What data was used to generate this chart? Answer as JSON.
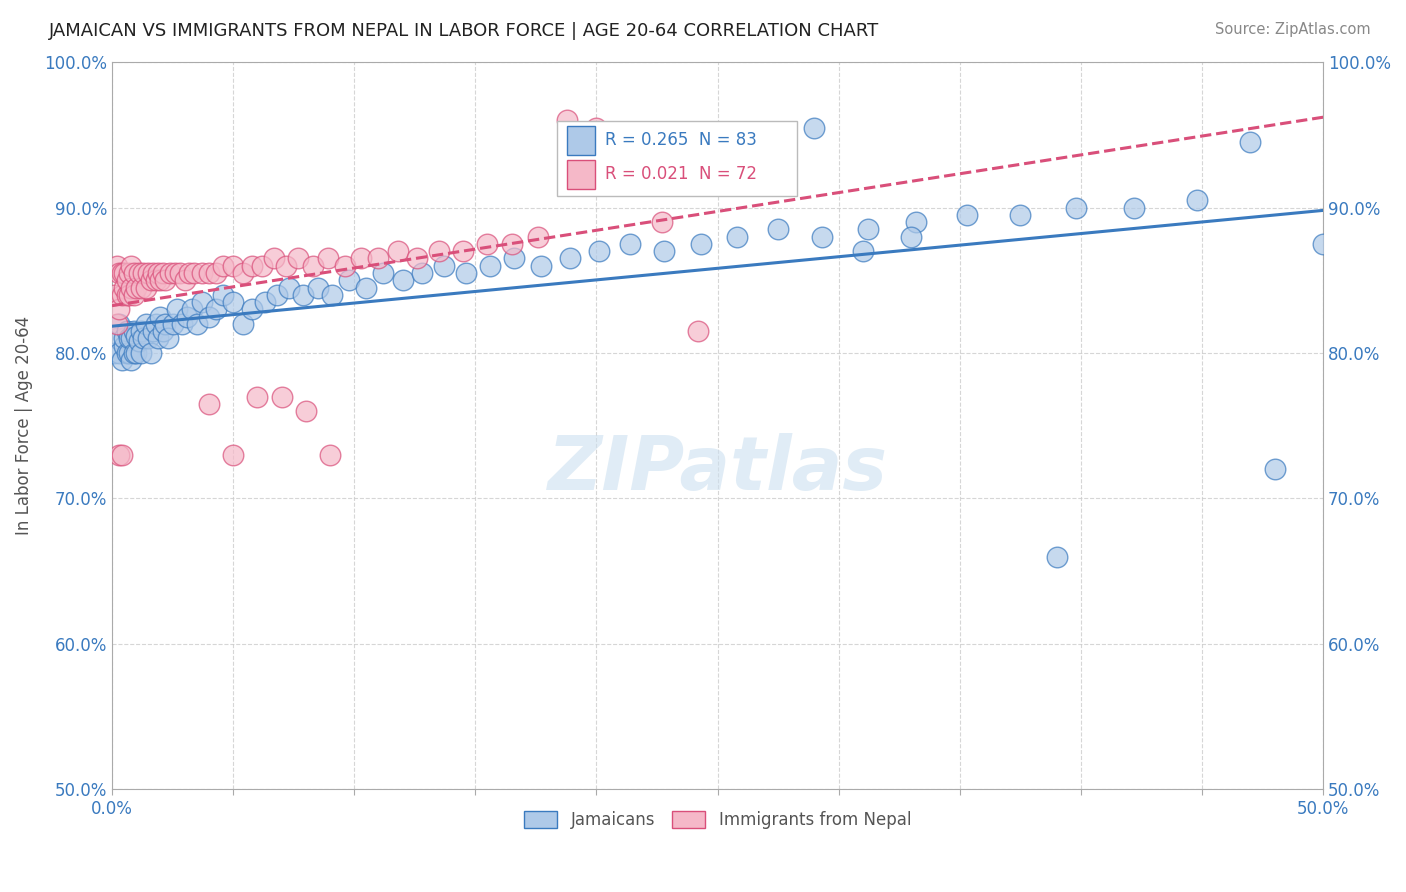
{
  "title": "JAMAICAN VS IMMIGRANTS FROM NEPAL IN LABOR FORCE | AGE 20-64 CORRELATION CHART",
  "source": "Source: ZipAtlas.com",
  "ylabel": "In Labor Force | Age 20-64",
  "x_min": 0.0,
  "x_max": 0.5,
  "y_min": 0.5,
  "y_max": 1.0,
  "series1_color": "#aec9e8",
  "series1_edge_color": "#3a7abf",
  "series2_color": "#f5b8c8",
  "series2_edge_color": "#d94f7a",
  "series1_label": "Jamaicans",
  "series2_label": "Immigrants from Nepal",
  "series1_R": 0.265,
  "series1_N": 83,
  "series2_R": 0.021,
  "series2_N": 72,
  "trend1_color": "#3a7abf",
  "trend2_color": "#d94f7a",
  "watermark": "ZIPatlas",
  "background_color": "#ffffff",
  "grid_color": "#cccccc",
  "blue_x": [
    0.001,
    0.002,
    0.003,
    0.003,
    0.004,
    0.005,
    0.005,
    0.006,
    0.006,
    0.007,
    0.007,
    0.008,
    0.008,
    0.009,
    0.009,
    0.01,
    0.01,
    0.011,
    0.012,
    0.012,
    0.013,
    0.014,
    0.015,
    0.016,
    0.017,
    0.018,
    0.019,
    0.02,
    0.021,
    0.022,
    0.023,
    0.025,
    0.027,
    0.029,
    0.031,
    0.033,
    0.035,
    0.037,
    0.04,
    0.043,
    0.046,
    0.05,
    0.054,
    0.058,
    0.063,
    0.068,
    0.073,
    0.079,
    0.085,
    0.091,
    0.098,
    0.105,
    0.112,
    0.12,
    0.128,
    0.137,
    0.146,
    0.156,
    0.166,
    0.177,
    0.189,
    0.201,
    0.214,
    0.228,
    0.243,
    0.258,
    0.275,
    0.293,
    0.312,
    0.332,
    0.353,
    0.375,
    0.398,
    0.422,
    0.448,
    0.39,
    0.47,
    0.48,
    0.29,
    0.26,
    0.31,
    0.33,
    0.5
  ],
  "blue_y": [
    0.8,
    0.81,
    0.8,
    0.82,
    0.795,
    0.805,
    0.81,
    0.8,
    0.815,
    0.8,
    0.81,
    0.795,
    0.81,
    0.8,
    0.815,
    0.8,
    0.812,
    0.808,
    0.8,
    0.815,
    0.81,
    0.82,
    0.81,
    0.8,
    0.815,
    0.82,
    0.81,
    0.825,
    0.815,
    0.82,
    0.81,
    0.82,
    0.83,
    0.82,
    0.825,
    0.83,
    0.82,
    0.835,
    0.825,
    0.83,
    0.84,
    0.835,
    0.82,
    0.83,
    0.835,
    0.84,
    0.845,
    0.84,
    0.845,
    0.84,
    0.85,
    0.845,
    0.855,
    0.85,
    0.855,
    0.86,
    0.855,
    0.86,
    0.865,
    0.86,
    0.865,
    0.87,
    0.875,
    0.87,
    0.875,
    0.88,
    0.885,
    0.88,
    0.885,
    0.89,
    0.895,
    0.895,
    0.9,
    0.9,
    0.905,
    0.66,
    0.945,
    0.72,
    0.955,
    0.945,
    0.87,
    0.88,
    0.875
  ],
  "pink_x": [
    0.001,
    0.002,
    0.002,
    0.003,
    0.003,
    0.004,
    0.004,
    0.005,
    0.005,
    0.006,
    0.006,
    0.007,
    0.007,
    0.008,
    0.008,
    0.009,
    0.009,
    0.01,
    0.011,
    0.012,
    0.013,
    0.014,
    0.015,
    0.016,
    0.017,
    0.018,
    0.019,
    0.02,
    0.021,
    0.022,
    0.024,
    0.026,
    0.028,
    0.03,
    0.032,
    0.034,
    0.037,
    0.04,
    0.043,
    0.046,
    0.05,
    0.054,
    0.058,
    0.062,
    0.067,
    0.072,
    0.077,
    0.083,
    0.089,
    0.096,
    0.103,
    0.11,
    0.118,
    0.126,
    0.135,
    0.145,
    0.155,
    0.165,
    0.176,
    0.188,
    0.2,
    0.213,
    0.227,
    0.242,
    0.04,
    0.05,
    0.06,
    0.07,
    0.08,
    0.09,
    0.003,
    0.004
  ],
  "pink_y": [
    0.84,
    0.82,
    0.86,
    0.83,
    0.855,
    0.84,
    0.855,
    0.845,
    0.855,
    0.84,
    0.85,
    0.84,
    0.855,
    0.845,
    0.86,
    0.84,
    0.855,
    0.845,
    0.855,
    0.845,
    0.855,
    0.845,
    0.855,
    0.85,
    0.855,
    0.85,
    0.855,
    0.85,
    0.855,
    0.85,
    0.855,
    0.855,
    0.855,
    0.85,
    0.855,
    0.855,
    0.855,
    0.855,
    0.855,
    0.86,
    0.86,
    0.855,
    0.86,
    0.86,
    0.865,
    0.86,
    0.865,
    0.86,
    0.865,
    0.86,
    0.865,
    0.865,
    0.87,
    0.865,
    0.87,
    0.87,
    0.875,
    0.875,
    0.88,
    0.96,
    0.955,
    0.94,
    0.89,
    0.815,
    0.765,
    0.73,
    0.77,
    0.77,
    0.76,
    0.73,
    0.73,
    0.73
  ]
}
